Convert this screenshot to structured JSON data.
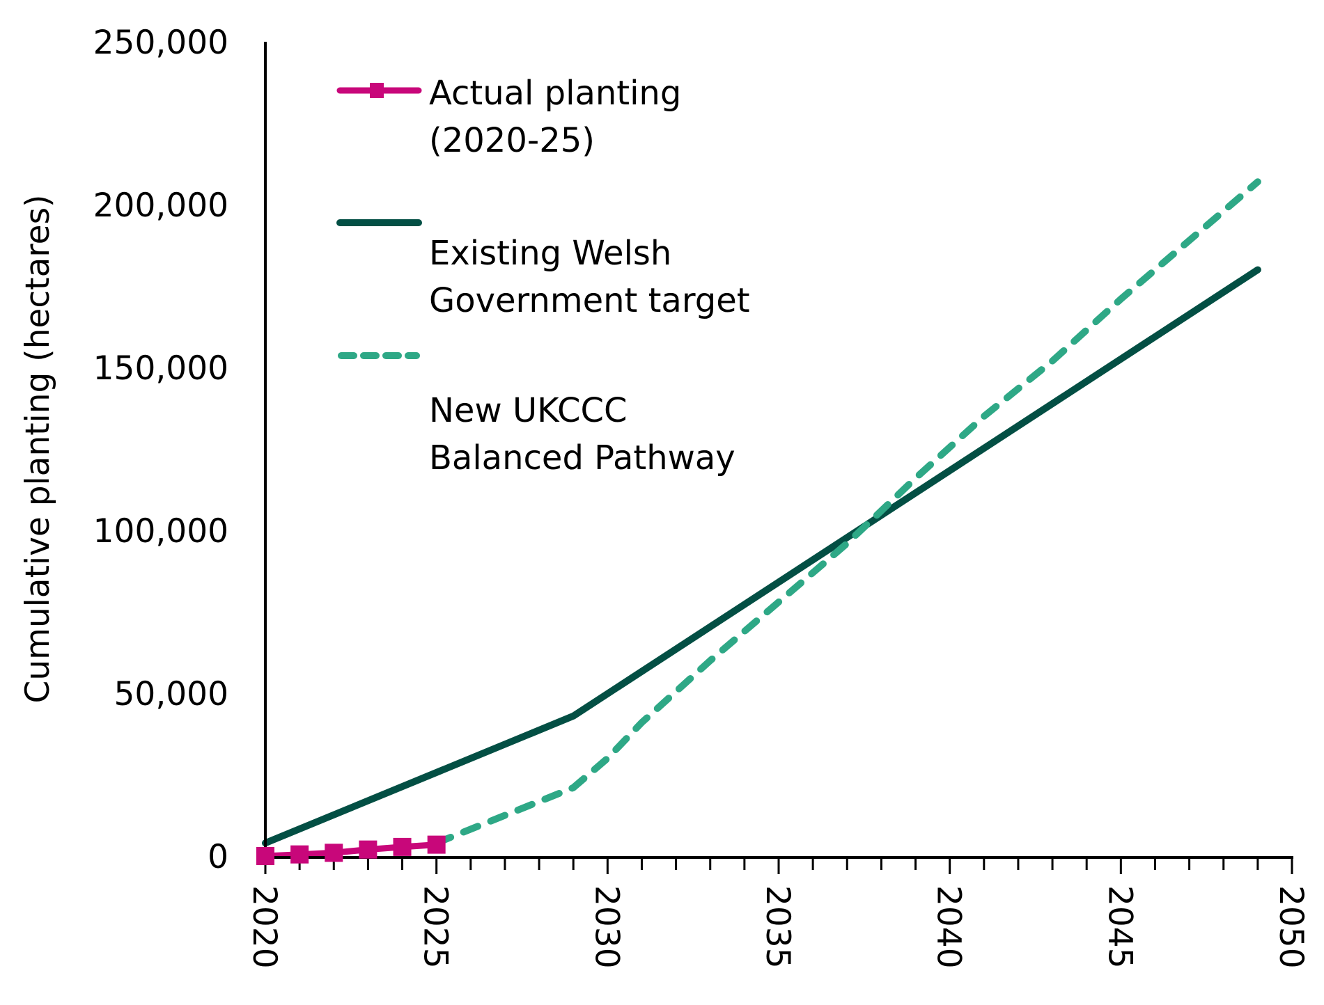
{
  "chart_data": {
    "type": "line",
    "title": "",
    "xlabel": "",
    "ylabel": "Cumulative planting (hectares)",
    "xlim": [
      2020,
      2050
    ],
    "ylim": [
      0,
      250000
    ],
    "x_ticks": [
      "2020",
      "2025",
      "2030",
      "2035",
      "2040",
      "2045",
      "2050"
    ],
    "y_ticks": [
      "0",
      "50,000",
      "100,000",
      "150,000",
      "200,000",
      "250,000"
    ],
    "grid": false,
    "legend_position": "top-left",
    "series": [
      {
        "name": "Actual planting (2020-25)",
        "legend_lines": [
          "Actual planting",
          "(2020-25)"
        ],
        "color": "#C8077A",
        "style": "solid-markers",
        "x": [
          2020,
          2021,
          2022,
          2023,
          2024,
          2025
        ],
        "y": [
          0,
          500,
          1000,
          2000,
          2800,
          3500
        ]
      },
      {
        "name": "Existing Welsh Government target",
        "legend_lines": [
          "Existing Welsh",
          "Government target"
        ],
        "color": "#034F44",
        "style": "solid",
        "x": [
          2020,
          2029,
          2049
        ],
        "y": [
          4000,
          43000,
          180000
        ]
      },
      {
        "name": "New UKCCC Balanced Pathway",
        "legend_lines": [
          "New UKCCC",
          "Balanced Pathway"
        ],
        "color": "#2EA886",
        "style": "dashed",
        "x": [
          2025,
          2029,
          2030,
          2031,
          2033,
          2035,
          2037,
          2039,
          2041,
          2043,
          2045,
          2047,
          2049
        ],
        "y": [
          4000,
          21000,
          30000,
          41000,
          60000,
          78000,
          96000,
          116000,
          135000,
          152000,
          171000,
          189000,
          207000
        ]
      }
    ]
  }
}
